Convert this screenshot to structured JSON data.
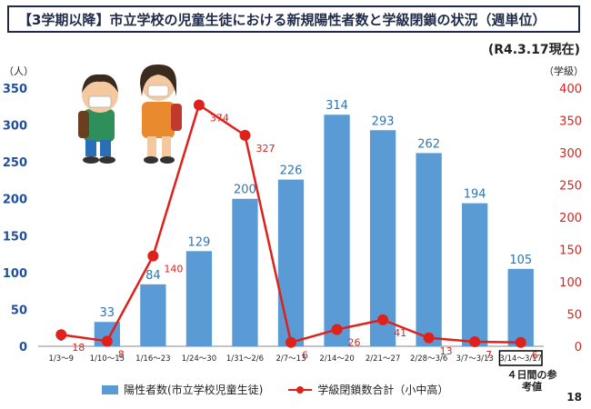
{
  "title": "【3学期以降】市立学校の児童生徒における新規陽性者数と学級閉鎖の状況（週単位）",
  "as_of": "(R4.3.17現在)",
  "left_unit": "（人）",
  "right_unit": "（学級）",
  "page_number": "18",
  "reference_note": "４日間の参考値",
  "chart_data": {
    "type": "bar",
    "categories": [
      "1/3～9",
      "1/10～15",
      "1/16～23",
      "1/24～30",
      "1/31～2/6",
      "2/7～13",
      "2/14～20",
      "2/21～27",
      "2/28～3/6",
      "3/7～3/13",
      "3/14～3/17"
    ],
    "series": [
      {
        "name": "陽性者数(市立学校児童生徒)",
        "type": "bar",
        "axis": "left",
        "values": [
          0,
          33,
          84,
          129,
          200,
          226,
          314,
          293,
          262,
          194,
          105
        ],
        "color": "#5b9bd5"
      },
      {
        "name": "学級閉鎖数合計（小中高）",
        "type": "line",
        "axis": "right",
        "values": [
          18,
          8,
          140,
          374,
          327,
          6,
          26,
          41,
          13,
          7,
          6
        ],
        "color": "#e0201b"
      }
    ],
    "yleft": {
      "ylim": [
        0,
        350
      ],
      "ticks": [
        0,
        50,
        100,
        150,
        200,
        250,
        300,
        350
      ],
      "color": "#1f4e9b"
    },
    "yright": {
      "ylim": [
        0,
        400
      ],
      "ticks": [
        0,
        50,
        100,
        150,
        200,
        250,
        300,
        350,
        400
      ],
      "color": "#e0201b"
    },
    "highlight_category": "3/14～3/17",
    "legend_position": "bottom"
  }
}
